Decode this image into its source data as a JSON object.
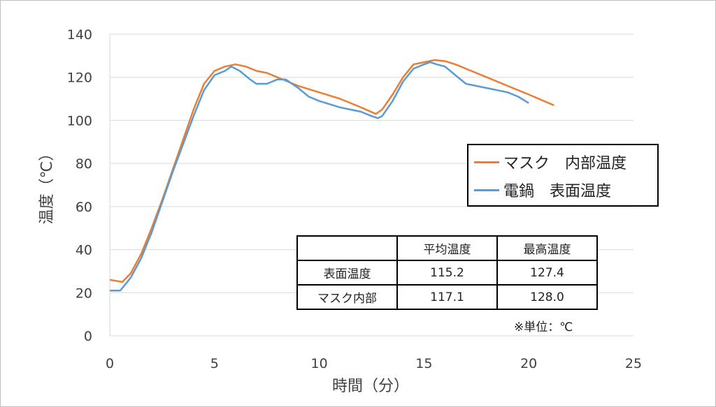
{
  "chart_data": {
    "type": "line",
    "xlabel": "時間（分）",
    "ylabel": "温度（℃）",
    "xlim": [
      0,
      25
    ],
    "ylim": [
      0,
      140
    ],
    "xticks": [
      0,
      5,
      10,
      15,
      20,
      25
    ],
    "yticks": [
      0,
      20,
      40,
      60,
      80,
      100,
      120,
      140
    ],
    "grid": "horizontal",
    "legend_position": "right",
    "series": [
      {
        "name": "マスク　内部温度",
        "color": "#ED7D31",
        "points": [
          [
            0,
            26
          ],
          [
            0.6,
            25
          ],
          [
            1.0,
            29
          ],
          [
            1.5,
            38
          ],
          [
            2.0,
            50
          ],
          [
            2.5,
            63
          ],
          [
            3.0,
            77
          ],
          [
            3.5,
            91
          ],
          [
            4.0,
            105
          ],
          [
            4.5,
            117
          ],
          [
            5.0,
            123
          ],
          [
            5.5,
            125
          ],
          [
            6.0,
            126
          ],
          [
            6.5,
            125
          ],
          [
            7.0,
            123
          ],
          [
            7.5,
            122
          ],
          [
            8.0,
            120
          ],
          [
            8.5,
            118
          ],
          [
            9.0,
            116
          ],
          [
            10.0,
            113
          ],
          [
            11.0,
            110
          ],
          [
            12.0,
            106
          ],
          [
            12.7,
            103
          ],
          [
            13.0,
            105
          ],
          [
            13.5,
            112
          ],
          [
            14.0,
            120
          ],
          [
            14.5,
            126
          ],
          [
            15.0,
            127
          ],
          [
            15.5,
            128
          ],
          [
            16.0,
            127.5
          ],
          [
            16.5,
            126
          ],
          [
            17.0,
            124
          ],
          [
            18.0,
            120
          ],
          [
            19.0,
            116
          ],
          [
            20.0,
            112
          ],
          [
            21.2,
            107
          ]
        ]
      },
      {
        "name": "電鍋　表面温度",
        "color": "#5B9BD5",
        "points": [
          [
            0,
            21
          ],
          [
            0.5,
            21
          ],
          [
            1.0,
            27
          ],
          [
            1.5,
            36
          ],
          [
            2.0,
            48
          ],
          [
            2.5,
            62
          ],
          [
            3.0,
            76
          ],
          [
            3.5,
            89
          ],
          [
            4.0,
            102
          ],
          [
            4.5,
            114
          ],
          [
            5.0,
            121
          ],
          [
            5.5,
            123
          ],
          [
            5.8,
            125
          ],
          [
            6.2,
            123
          ],
          [
            6.7,
            119
          ],
          [
            7.0,
            117
          ],
          [
            7.5,
            117
          ],
          [
            8.0,
            119
          ],
          [
            8.4,
            119
          ],
          [
            9.0,
            115
          ],
          [
            9.5,
            111
          ],
          [
            10.0,
            109
          ],
          [
            11.0,
            106
          ],
          [
            12.0,
            104
          ],
          [
            12.5,
            102
          ],
          [
            12.8,
            101
          ],
          [
            13.0,
            102
          ],
          [
            13.5,
            109
          ],
          [
            14.0,
            118
          ],
          [
            14.5,
            124
          ],
          [
            15.0,
            126
          ],
          [
            15.3,
            127
          ],
          [
            15.6,
            126
          ],
          [
            16.0,
            125
          ],
          [
            16.5,
            121
          ],
          [
            17.0,
            117
          ],
          [
            18.0,
            115
          ],
          [
            19.0,
            113
          ],
          [
            19.5,
            111
          ],
          [
            20.0,
            108
          ]
        ]
      }
    ],
    "table": {
      "headers": [
        "",
        "平均温度",
        "最高温度"
      ],
      "rows": [
        [
          "表面温度",
          "115.2",
          "127.4"
        ],
        [
          "マスク内部",
          "117.1",
          "128.0"
        ]
      ],
      "note": "※単位：℃"
    }
  }
}
